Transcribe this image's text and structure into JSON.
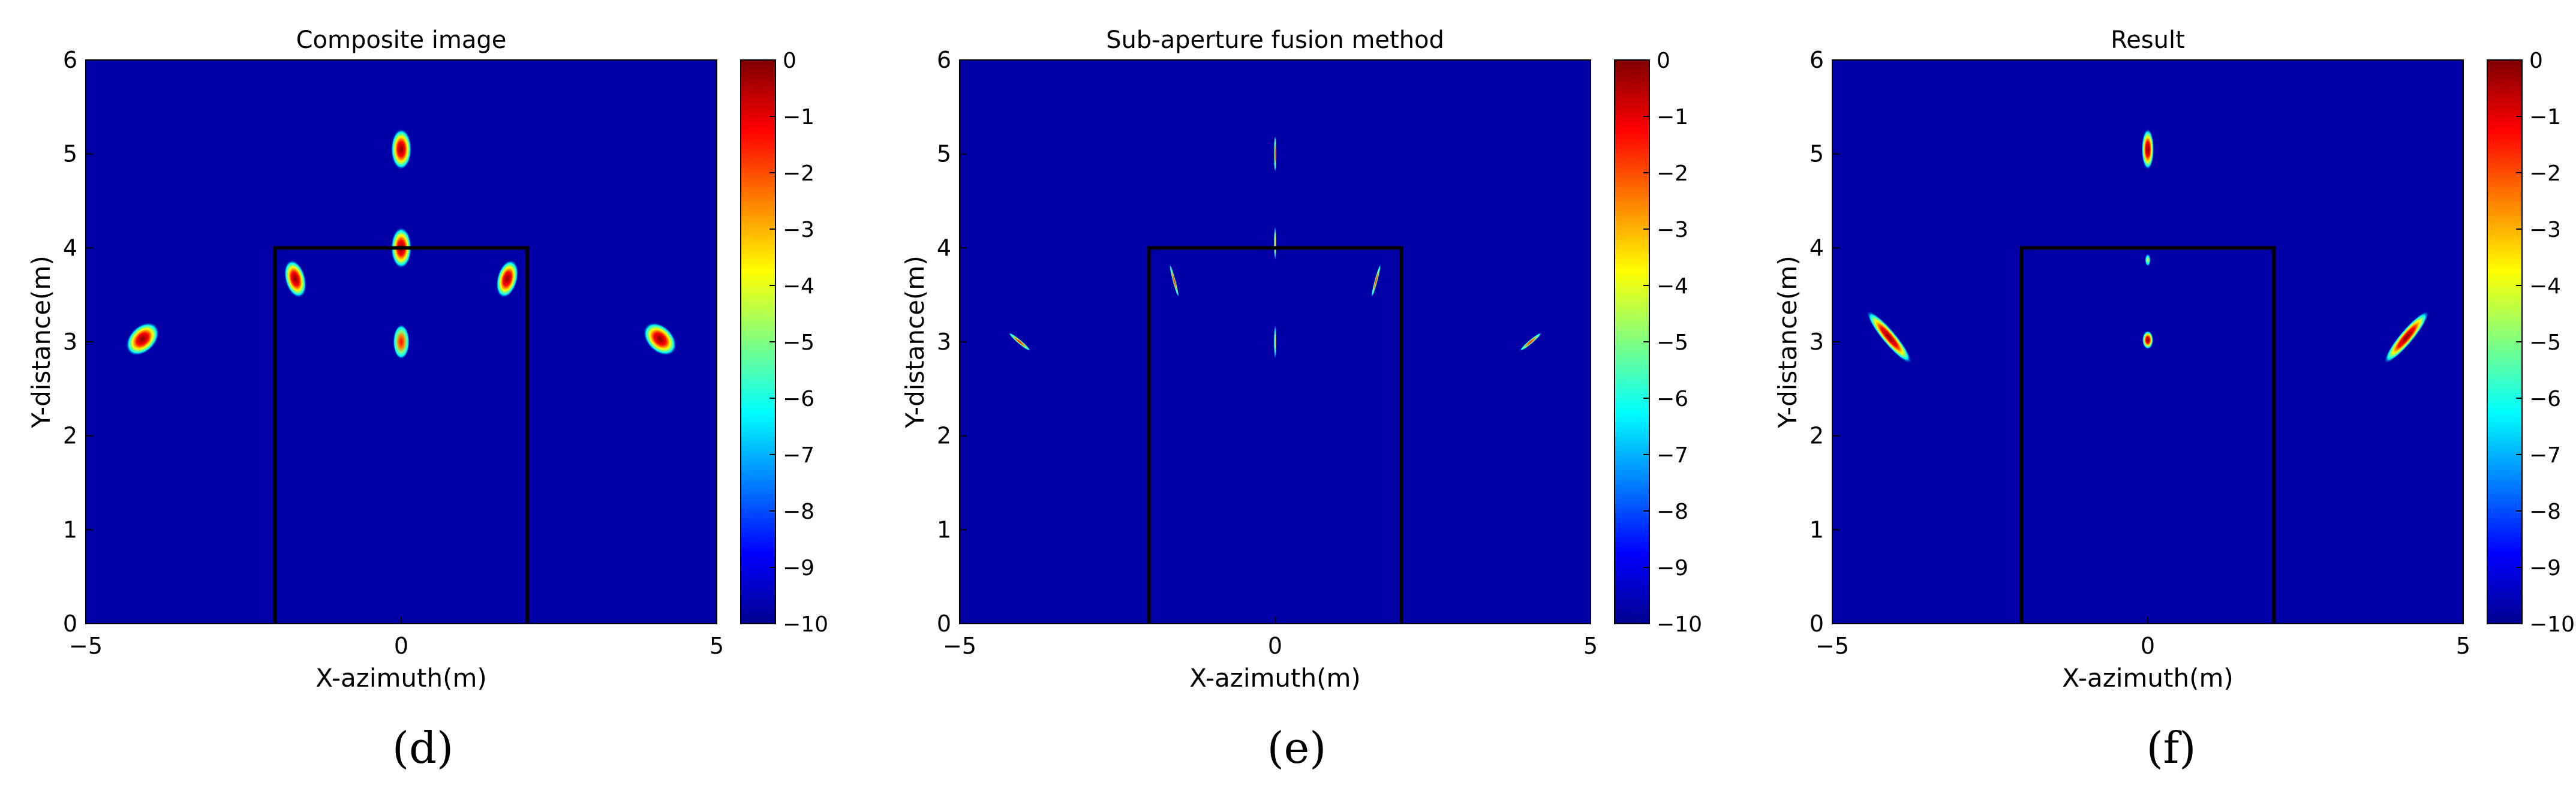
{
  "colors": {
    "background": "#0000a6",
    "frame": "#000000",
    "box": "#000000"
  },
  "colormap": [
    "#00008f",
    "#0000ff",
    "#0080ff",
    "#00ffff",
    "#80ff80",
    "#ffff00",
    "#ff8000",
    "#ff0000",
    "#800000"
  ],
  "captions": [
    "(d)",
    "(e)",
    "(f)"
  ],
  "chart_data": [
    {
      "type": "heatmap",
      "title": "Composite image",
      "xlabel": "X-azimuth(m)",
      "ylabel": "Y-distance(m)",
      "xlim": [
        -5,
        5
      ],
      "ylim": [
        0,
        6
      ],
      "xticks": [
        "−5",
        "0",
        "5"
      ],
      "yticks": [
        "0",
        "1",
        "2",
        "3",
        "4",
        "5",
        "6"
      ],
      "colorbar": {
        "range": [
          -10,
          0
        ],
        "ticks": [
          "0",
          "−1",
          "−2",
          "−3",
          "−4",
          "−5",
          "−6",
          "−7",
          "−8",
          "−9",
          "−10"
        ]
      },
      "box": {
        "x": [
          -2,
          2
        ],
        "y": [
          0,
          4
        ]
      },
      "grid": false,
      "targets": [
        {
          "x": 0,
          "y": 5.05,
          "w": 0.15,
          "h": 0.2,
          "angle": 0,
          "level": 0
        },
        {
          "x": 0,
          "y": 4.0,
          "w": 0.15,
          "h": 0.2,
          "angle": 0,
          "level": 0
        },
        {
          "x": 0,
          "y": 3.0,
          "w": 0.12,
          "h": 0.17,
          "angle": 0,
          "level": -1
        },
        {
          "x": -1.68,
          "y": 3.67,
          "w": 0.15,
          "h": 0.19,
          "angle": -15,
          "level": 0
        },
        {
          "x": 1.68,
          "y": 3.67,
          "w": 0.15,
          "h": 0.19,
          "angle": 15,
          "level": 0
        },
        {
          "x": -4.1,
          "y": 3.03,
          "w": 0.19,
          "h": 0.19,
          "angle": 45,
          "level": 0
        },
        {
          "x": 4.1,
          "y": 3.03,
          "w": 0.19,
          "h": 0.19,
          "angle": -45,
          "level": 0
        }
      ]
    },
    {
      "type": "heatmap",
      "title": "Sub-aperture fusion method",
      "xlabel": "X-azimuth(m)",
      "ylabel": "Y-distance(m)",
      "xlim": [
        -5,
        5
      ],
      "ylim": [
        0,
        6
      ],
      "xticks": [
        "−5",
        "0",
        "5"
      ],
      "yticks": [
        "0",
        "1",
        "2",
        "3",
        "4",
        "5",
        "6"
      ],
      "colorbar": {
        "range": [
          -10,
          0
        ],
        "ticks": [
          "0",
          "−1",
          "−2",
          "−3",
          "−4",
          "−5",
          "−6",
          "−7",
          "−8",
          "−9",
          "−10"
        ]
      },
      "box": {
        "x": [
          -2,
          2
        ],
        "y": [
          0,
          4
        ]
      },
      "grid": false,
      "targets": [
        {
          "x": 0,
          "y": 5.0,
          "w": 0.018,
          "h": 0.18,
          "angle": 0,
          "level": -1
        },
        {
          "x": 0,
          "y": 4.05,
          "w": 0.018,
          "h": 0.17,
          "angle": 0,
          "level": -2
        },
        {
          "x": 0,
          "y": 3.0,
          "w": 0.018,
          "h": 0.17,
          "angle": 0,
          "level": -3
        },
        {
          "x": -1.6,
          "y": 3.65,
          "w": 0.022,
          "h": 0.17,
          "angle": -15,
          "level": -1
        },
        {
          "x": 1.6,
          "y": 3.65,
          "w": 0.022,
          "h": 0.17,
          "angle": 15,
          "level": -1
        },
        {
          "x": -4.05,
          "y": 3.0,
          "w": 0.03,
          "h": 0.14,
          "angle": -50,
          "level": -1
        },
        {
          "x": 4.05,
          "y": 3.0,
          "w": 0.03,
          "h": 0.14,
          "angle": 50,
          "level": -1
        }
      ]
    },
    {
      "type": "heatmap",
      "title": "Result",
      "xlabel": "X-azimuth(m)",
      "ylabel": "Y-distance(m)",
      "xlim": [
        -5,
        5
      ],
      "ylim": [
        0,
        6
      ],
      "xticks": [
        "−5",
        "0",
        "5"
      ],
      "yticks": [
        "0",
        "1",
        "2",
        "3",
        "4",
        "5",
        "6"
      ],
      "colorbar": {
        "range": [
          -10,
          0
        ],
        "ticks": [
          "0",
          "−1",
          "−2",
          "−3",
          "−4",
          "−5",
          "−6",
          "−7",
          "−8",
          "−9",
          "−10"
        ]
      },
      "box": {
        "x": [
          -2,
          2
        ],
        "y": [
          0,
          4
        ]
      },
      "grid": false,
      "targets": [
        {
          "x": 0,
          "y": 5.05,
          "w": 0.09,
          "h": 0.2,
          "angle": 0,
          "level": 0
        },
        {
          "x": 0,
          "y": 3.02,
          "w": 0.08,
          "h": 0.09,
          "angle": 0,
          "level": 0
        },
        {
          "x": 0,
          "y": 3.87,
          "w": 0.04,
          "h": 0.06,
          "angle": 0,
          "level": -4
        },
        {
          "x": -4.1,
          "y": 3.05,
          "w": 0.1,
          "h": 0.33,
          "angle": -40,
          "level": 0
        },
        {
          "x": 4.1,
          "y": 3.05,
          "w": 0.1,
          "h": 0.33,
          "angle": 40,
          "level": 0
        }
      ]
    }
  ]
}
